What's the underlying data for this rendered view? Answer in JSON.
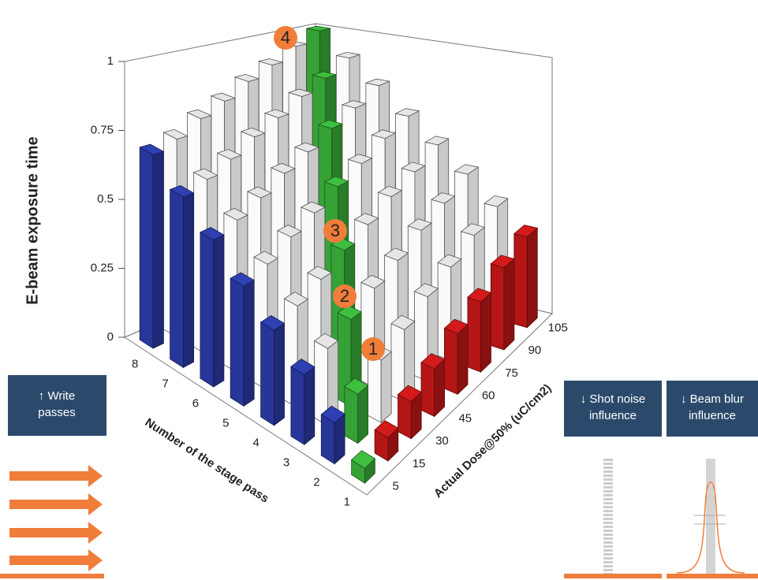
{
  "chart_data": {
    "type": "bar3d",
    "zlabel": "E-beam exposure time",
    "xlabel": "Number of the stage pass",
    "ylabel": "Actual Dose@50% (uC/cm2)",
    "passes": [
      1,
      2,
      3,
      4,
      5,
      6,
      7,
      8
    ],
    "doses": [
      5,
      15,
      30,
      45,
      60,
      75,
      90,
      105
    ],
    "values": [
      [
        0.05,
        0.08,
        0.13,
        0.17,
        0.22,
        0.26,
        0.31,
        0.35
      ],
      [
        0.14,
        0.17,
        0.22,
        0.26,
        0.31,
        0.35,
        0.4,
        0.44
      ],
      [
        0.24,
        0.27,
        0.31,
        0.36,
        0.4,
        0.45,
        0.49,
        0.54
      ],
      [
        0.33,
        0.36,
        0.4,
        0.45,
        0.49,
        0.54,
        0.58,
        0.63
      ],
      [
        0.42,
        0.45,
        0.5,
        0.54,
        0.59,
        0.63,
        0.68,
        0.72
      ],
      [
        0.52,
        0.55,
        0.59,
        0.64,
        0.68,
        0.73,
        0.77,
        0.82
      ],
      [
        0.61,
        0.64,
        0.68,
        0.73,
        0.77,
        0.82,
        0.86,
        0.91
      ],
      [
        0.7,
        0.73,
        0.78,
        0.82,
        0.87,
        0.91,
        0.96,
        1.0
      ]
    ],
    "colors": {
      "first_dose": "#2f3fb4",
      "first_pass": "#d41a1a",
      "diagonal": "#3fbf3f",
      "other": "#ffffff"
    },
    "zlim": [
      0,
      1
    ],
    "zticks": [
      0,
      0.25,
      0.5,
      0.75,
      1
    ],
    "annotations": [
      "1",
      "2",
      "3",
      "4"
    ]
  },
  "panels": [
    {
      "lines": [
        "↑ Write",
        "passes"
      ]
    },
    {
      "lines": [
        "↓ Shot noise",
        "influence"
      ]
    },
    {
      "lines": [
        "↓ Beam blur",
        "influence"
      ]
    }
  ]
}
